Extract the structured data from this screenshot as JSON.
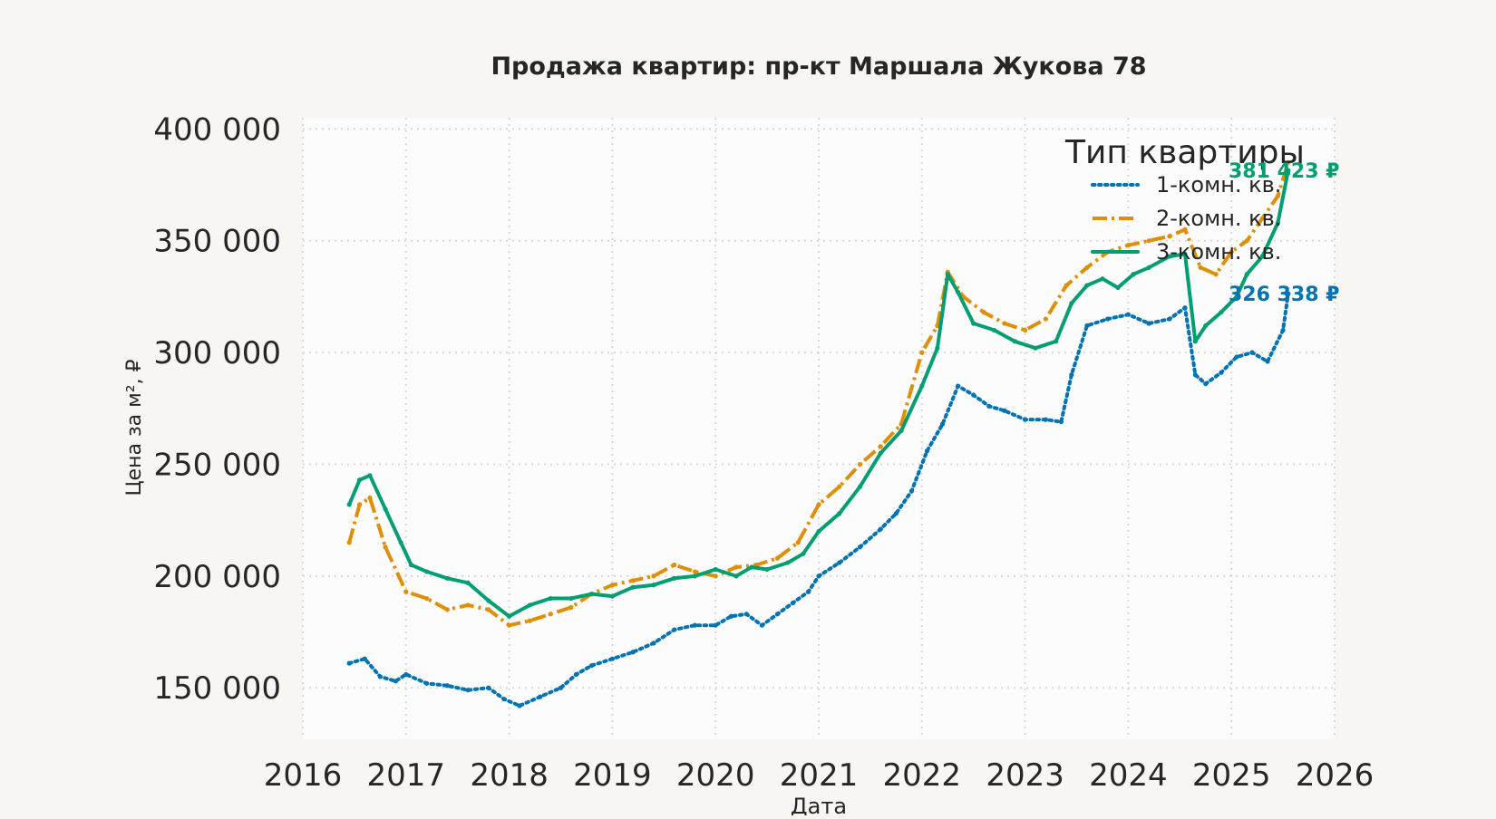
{
  "chart_data": {
    "type": "line",
    "title": "Продажа квартир: пр-кт Маршала Жукова 78",
    "xlabel": "Дата",
    "ylabel": "Цена за м², ₽",
    "xlim": [
      2016.0,
      2026.0
    ],
    "ylim": [
      127000,
      405000
    ],
    "x_ticks": [
      2016,
      2017,
      2018,
      2019,
      2020,
      2021,
      2022,
      2023,
      2024,
      2025,
      2026
    ],
    "y_ticks": [
      150000,
      200000,
      250000,
      300000,
      350000,
      400000
    ],
    "y_tick_labels": [
      "150 000",
      "200 000",
      "250 000",
      "300 000",
      "350 000",
      "400 000"
    ],
    "grid": true,
    "legend": {
      "title": "Тип квартиры",
      "placement": "top-right"
    },
    "series": [
      {
        "name": "1-комн. кв.",
        "color": "#0173b2",
        "style": "dotted",
        "end_label": "326 338 ₽",
        "x": [
          2016.45,
          2016.6,
          2016.75,
          2016.9,
          2017.0,
          2017.2,
          2017.4,
          2017.6,
          2017.8,
          2017.95,
          2018.1,
          2018.3,
          2018.5,
          2018.65,
          2018.8,
          2019.0,
          2019.2,
          2019.4,
          2019.6,
          2019.8,
          2020.0,
          2020.15,
          2020.3,
          2020.45,
          2020.6,
          2020.75,
          2020.9,
          2021.0,
          2021.2,
          2021.4,
          2021.6,
          2021.75,
          2021.9,
          2022.05,
          2022.2,
          2022.35,
          2022.5,
          2022.65,
          2022.8,
          2023.0,
          2023.2,
          2023.35,
          2023.45,
          2023.6,
          2023.8,
          2024.0,
          2024.2,
          2024.4,
          2024.55,
          2024.65,
          2024.75,
          2024.9,
          2025.05,
          2025.2,
          2025.35,
          2025.5,
          2025.55
        ],
        "y": [
          161000,
          163000,
          155000,
          153000,
          156000,
          152000,
          151000,
          149000,
          150000,
          145000,
          142000,
          146000,
          150000,
          156000,
          160000,
          163000,
          166000,
          170000,
          176000,
          178000,
          178000,
          182000,
          183000,
          178000,
          183000,
          188000,
          193000,
          200000,
          206000,
          213000,
          221000,
          228000,
          238000,
          256000,
          268000,
          285000,
          281000,
          276000,
          274000,
          270000,
          270000,
          269000,
          290000,
          312000,
          315000,
          317000,
          313000,
          315000,
          320000,
          290000,
          286000,
          291000,
          298000,
          300000,
          296000,
          310000,
          326338
        ]
      },
      {
        "name": "2-комн. кв.",
        "color": "#de8f05",
        "style": "dashdot",
        "end_label": "",
        "x": [
          2016.45,
          2016.55,
          2016.65,
          2016.8,
          2017.0,
          2017.2,
          2017.4,
          2017.6,
          2017.8,
          2018.0,
          2018.2,
          2018.4,
          2018.6,
          2018.8,
          2019.0,
          2019.2,
          2019.4,
          2019.6,
          2019.8,
          2020.0,
          2020.2,
          2020.4,
          2020.6,
          2020.8,
          2021.0,
          2021.2,
          2021.4,
          2021.6,
          2021.8,
          2022.0,
          2022.15,
          2022.25,
          2022.4,
          2022.6,
          2022.8,
          2023.0,
          2023.2,
          2023.4,
          2023.6,
          2023.8,
          2024.0,
          2024.2,
          2024.4,
          2024.55,
          2024.7,
          2024.85,
          2025.0,
          2025.15,
          2025.3,
          2025.45,
          2025.55
        ],
        "y": [
          215000,
          232000,
          235000,
          213000,
          193000,
          190000,
          185000,
          187000,
          185000,
          178000,
          180000,
          183000,
          186000,
          192000,
          196000,
          198000,
          200000,
          205000,
          202000,
          200000,
          204000,
          205000,
          208000,
          215000,
          232000,
          240000,
          250000,
          258000,
          268000,
          300000,
          312000,
          336000,
          325000,
          318000,
          313000,
          310000,
          315000,
          330000,
          338000,
          345000,
          348000,
          350000,
          352000,
          355000,
          338000,
          335000,
          345000,
          350000,
          360000,
          370000,
          385000
        ]
      },
      {
        "name": "3-комн. кв.",
        "color": "#029e73",
        "style": "solid",
        "end_label": "381 423 ₽",
        "x": [
          2016.45,
          2016.55,
          2016.65,
          2016.8,
          2016.95,
          2017.05,
          2017.2,
          2017.4,
          2017.6,
          2017.8,
          2018.0,
          2018.2,
          2018.4,
          2018.6,
          2018.8,
          2019.0,
          2019.2,
          2019.4,
          2019.6,
          2019.8,
          2020.0,
          2020.2,
          2020.35,
          2020.5,
          2020.7,
          2020.85,
          2021.0,
          2021.2,
          2021.4,
          2021.6,
          2021.8,
          2022.0,
          2022.15,
          2022.25,
          2022.35,
          2022.5,
          2022.7,
          2022.9,
          2023.1,
          2023.3,
          2023.45,
          2023.6,
          2023.75,
          2023.9,
          2024.05,
          2024.2,
          2024.4,
          2024.55,
          2024.65,
          2024.75,
          2024.9,
          2025.05,
          2025.15,
          2025.3,
          2025.45,
          2025.55
        ],
        "y": [
          232000,
          243000,
          245000,
          230000,
          215000,
          205000,
          202000,
          199000,
          197000,
          189000,
          182000,
          187000,
          190000,
          190000,
          192000,
          191000,
          195000,
          196000,
          199000,
          200000,
          203000,
          200000,
          204000,
          203000,
          206000,
          210000,
          220000,
          228000,
          240000,
          255000,
          265000,
          285000,
          302000,
          335000,
          327000,
          313000,
          310000,
          305000,
          302000,
          305000,
          322000,
          330000,
          333000,
          329000,
          335000,
          338000,
          343000,
          344000,
          305000,
          312000,
          318000,
          325000,
          335000,
          343000,
          358000,
          381423
        ]
      }
    ]
  }
}
